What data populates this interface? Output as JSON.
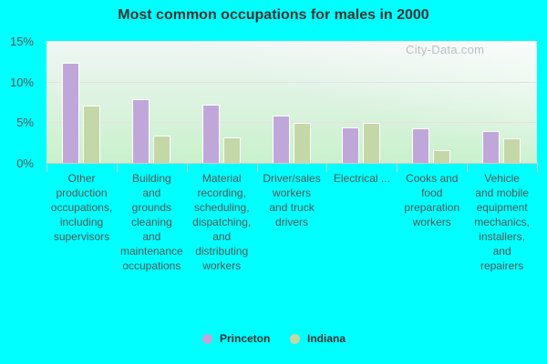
{
  "title": "Most common occupations for males in 2000",
  "watermark": "City-Data.com",
  "y_ticks": [
    "15%",
    "10%",
    "5%",
    "0%"
  ],
  "legend": [
    {
      "label": "Princeton",
      "color": "#bfa8d9"
    },
    {
      "label": "Indiana",
      "color": "#c3d7a7"
    }
  ],
  "chart_data": {
    "type": "bar",
    "title": "Most common occupations for males in 2000",
    "xlabel": "",
    "ylabel": "",
    "ylim": [
      0,
      15
    ],
    "y_ticks": [
      0,
      5,
      10,
      15
    ],
    "y_tick_format": "%",
    "grid": true,
    "legend_position": "bottom",
    "categories": [
      "Other production occupations, including supervisors",
      "Building and grounds cleaning and maintenance occupations",
      "Material recording, scheduling, dispatching, and distributing workers",
      "Driver/sales workers and truck drivers",
      "Electrical ...",
      "Cooks and food preparation workers",
      "Vehicle and mobile equipment mechanics, installers, and repairers"
    ],
    "category_labels_display": [
      "Other\nproduction\noccupations,\nincluding\nsupervisors",
      "Building\nand\ngrounds\ncleaning\nand\nmaintenance\noccupations",
      "Material\nrecording,\nscheduling,\ndispatching,\nand\ndistributing\nworkers",
      "Driver/sales\nworkers\nand truck\ndrivers",
      "Electrical ...",
      "Cooks and\nfood\npreparation\nworkers",
      "Vehicle\nand mobile\nequipment\nmechanics,\ninstallers,\nand\nrepairers"
    ],
    "series": [
      {
        "name": "Princeton",
        "color": "#bfa8d9",
        "values": [
          12.3,
          7.8,
          7.2,
          5.8,
          4.4,
          4.2,
          3.9
        ]
      },
      {
        "name": "Indiana",
        "color": "#c3d7a7",
        "values": [
          7.0,
          3.4,
          3.1,
          4.9,
          4.9,
          1.6,
          3.0
        ]
      }
    ]
  }
}
